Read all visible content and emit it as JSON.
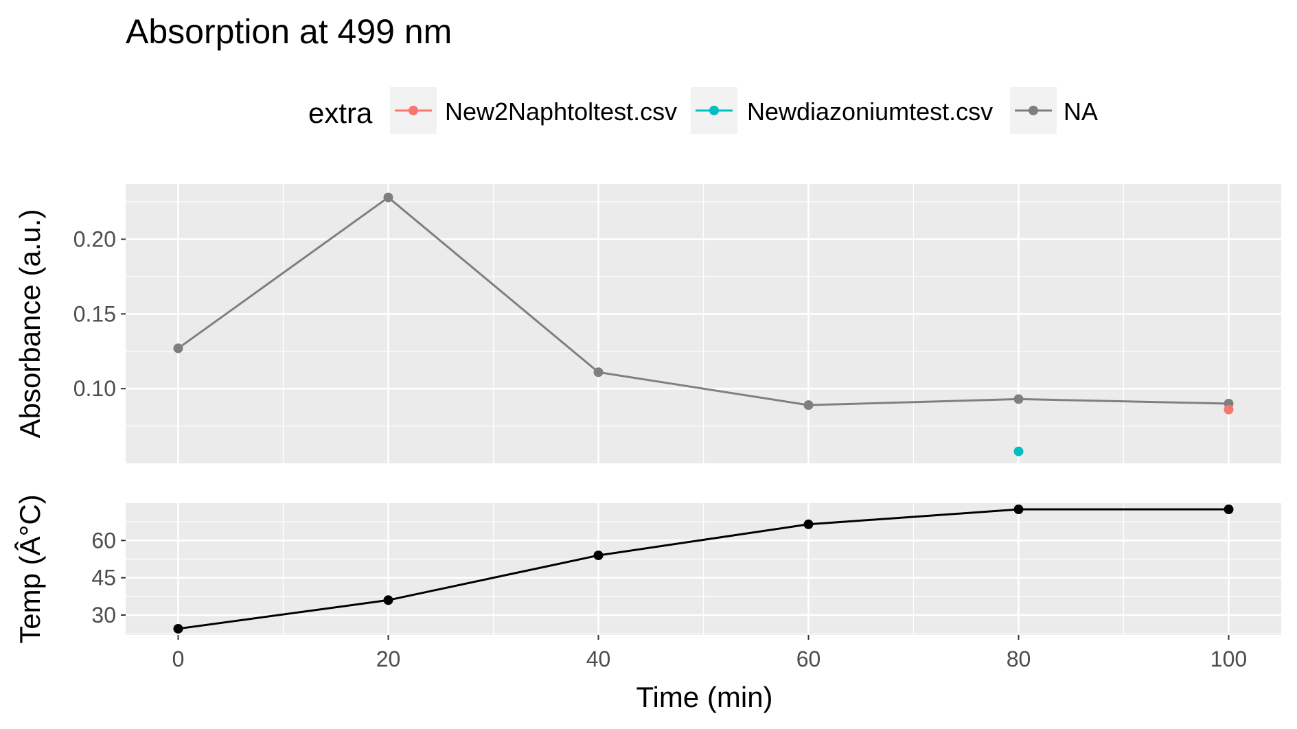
{
  "chart_data": {
    "type": "line",
    "title": "Absorption at 499 nm",
    "xlabel": "Time (min)",
    "x_ticks": [
      0,
      20,
      40,
      60,
      80,
      100
    ],
    "xlim": [
      -5,
      105
    ],
    "legend": {
      "title": "extra",
      "position": "top",
      "entries": [
        {
          "label": "New2Naphtoltest.csv",
          "color": "#F8766D"
        },
        {
          "label": "Newdiazoniumtest.csv",
          "color": "#00BFC4"
        },
        {
          "label": "NA",
          "color": "#7F7F7F"
        }
      ]
    },
    "panels": [
      {
        "ylabel": "Absorbance (a.u.)",
        "ylim": [
          0.05,
          0.237
        ],
        "y_ticks": [
          0.1,
          0.15,
          0.2
        ],
        "y_tick_labels": [
          "0.10",
          "0.15",
          "0.20"
        ],
        "series": [
          {
            "name": "NA",
            "color": "#7F7F7F",
            "line": true,
            "x": [
              0,
              20,
              40,
              60,
              80,
              100
            ],
            "y": [
              0.127,
              0.228,
              0.111,
              0.089,
              0.093,
              0.09
            ]
          },
          {
            "name": "New2Naphtoltest.csv",
            "color": "#F8766D",
            "line": false,
            "x": [
              100
            ],
            "y": [
              0.086
            ]
          },
          {
            "name": "Newdiazoniumtest.csv",
            "color": "#00BFC4",
            "line": false,
            "x": [
              80
            ],
            "y": [
              0.058
            ]
          }
        ]
      },
      {
        "ylabel": "Temp (Â°C)",
        "ylim": [
          22,
          75
        ],
        "y_ticks": [
          30,
          45,
          60
        ],
        "y_tick_labels": [
          "30",
          "45",
          "60"
        ],
        "series": [
          {
            "color": "#000000",
            "line": true,
            "x": [
              0,
              20,
              40,
              60,
              80,
              100
            ],
            "y": [
              24.5,
              36,
              54,
              66.5,
              72.5,
              72.5
            ]
          }
        ]
      }
    ],
    "grid": true
  }
}
